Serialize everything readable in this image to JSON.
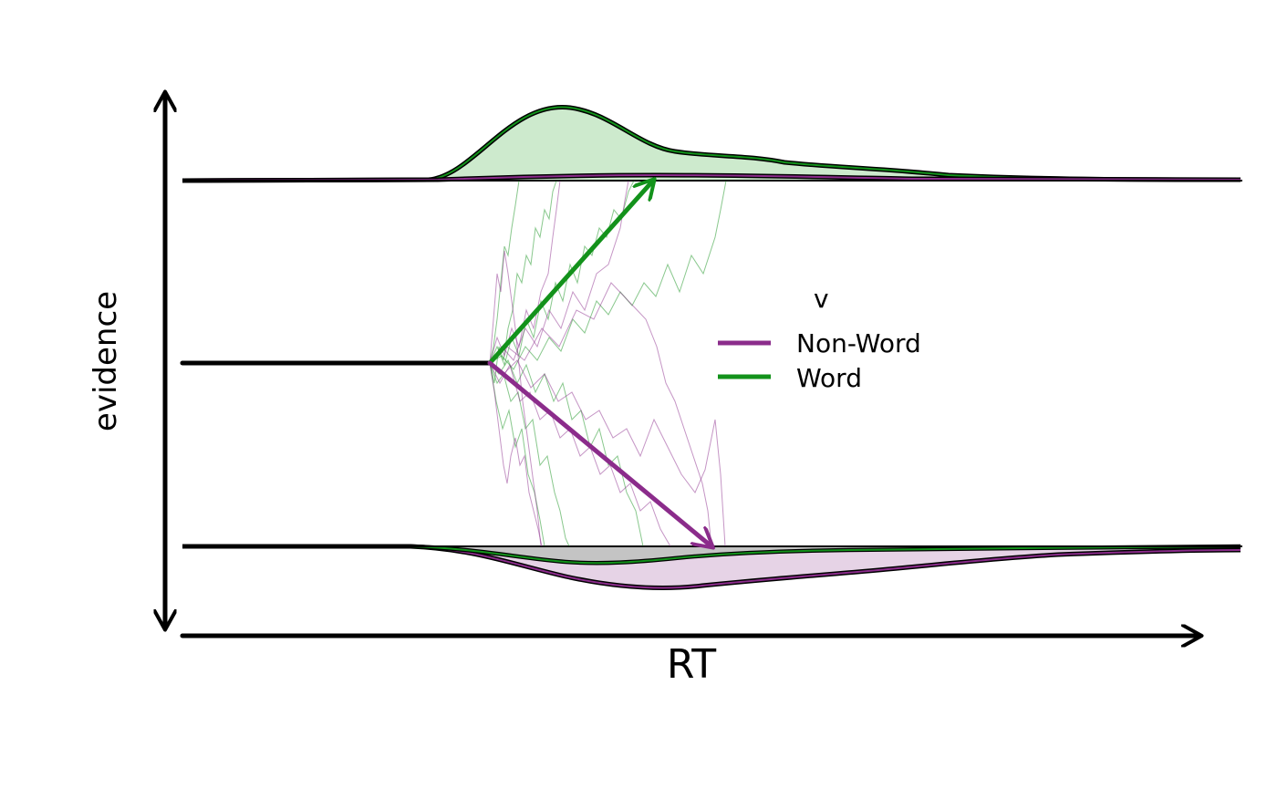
{
  "axes": {
    "x_label": "RT",
    "y_label": "evidence"
  },
  "legend": {
    "title": "v",
    "items": [
      {
        "label": "Non-Word",
        "color": "#8b2c8b"
      },
      {
        "label": "Word",
        "color": "#13921b"
      }
    ]
  },
  "colors": {
    "word": "#13921b",
    "word_fill": "#cdeacd",
    "nonword": "#8b2c8b",
    "nonword_fill": "#e6d3e6",
    "overlap_fill": "#c4c4c4",
    "axis": "#000000"
  }
}
